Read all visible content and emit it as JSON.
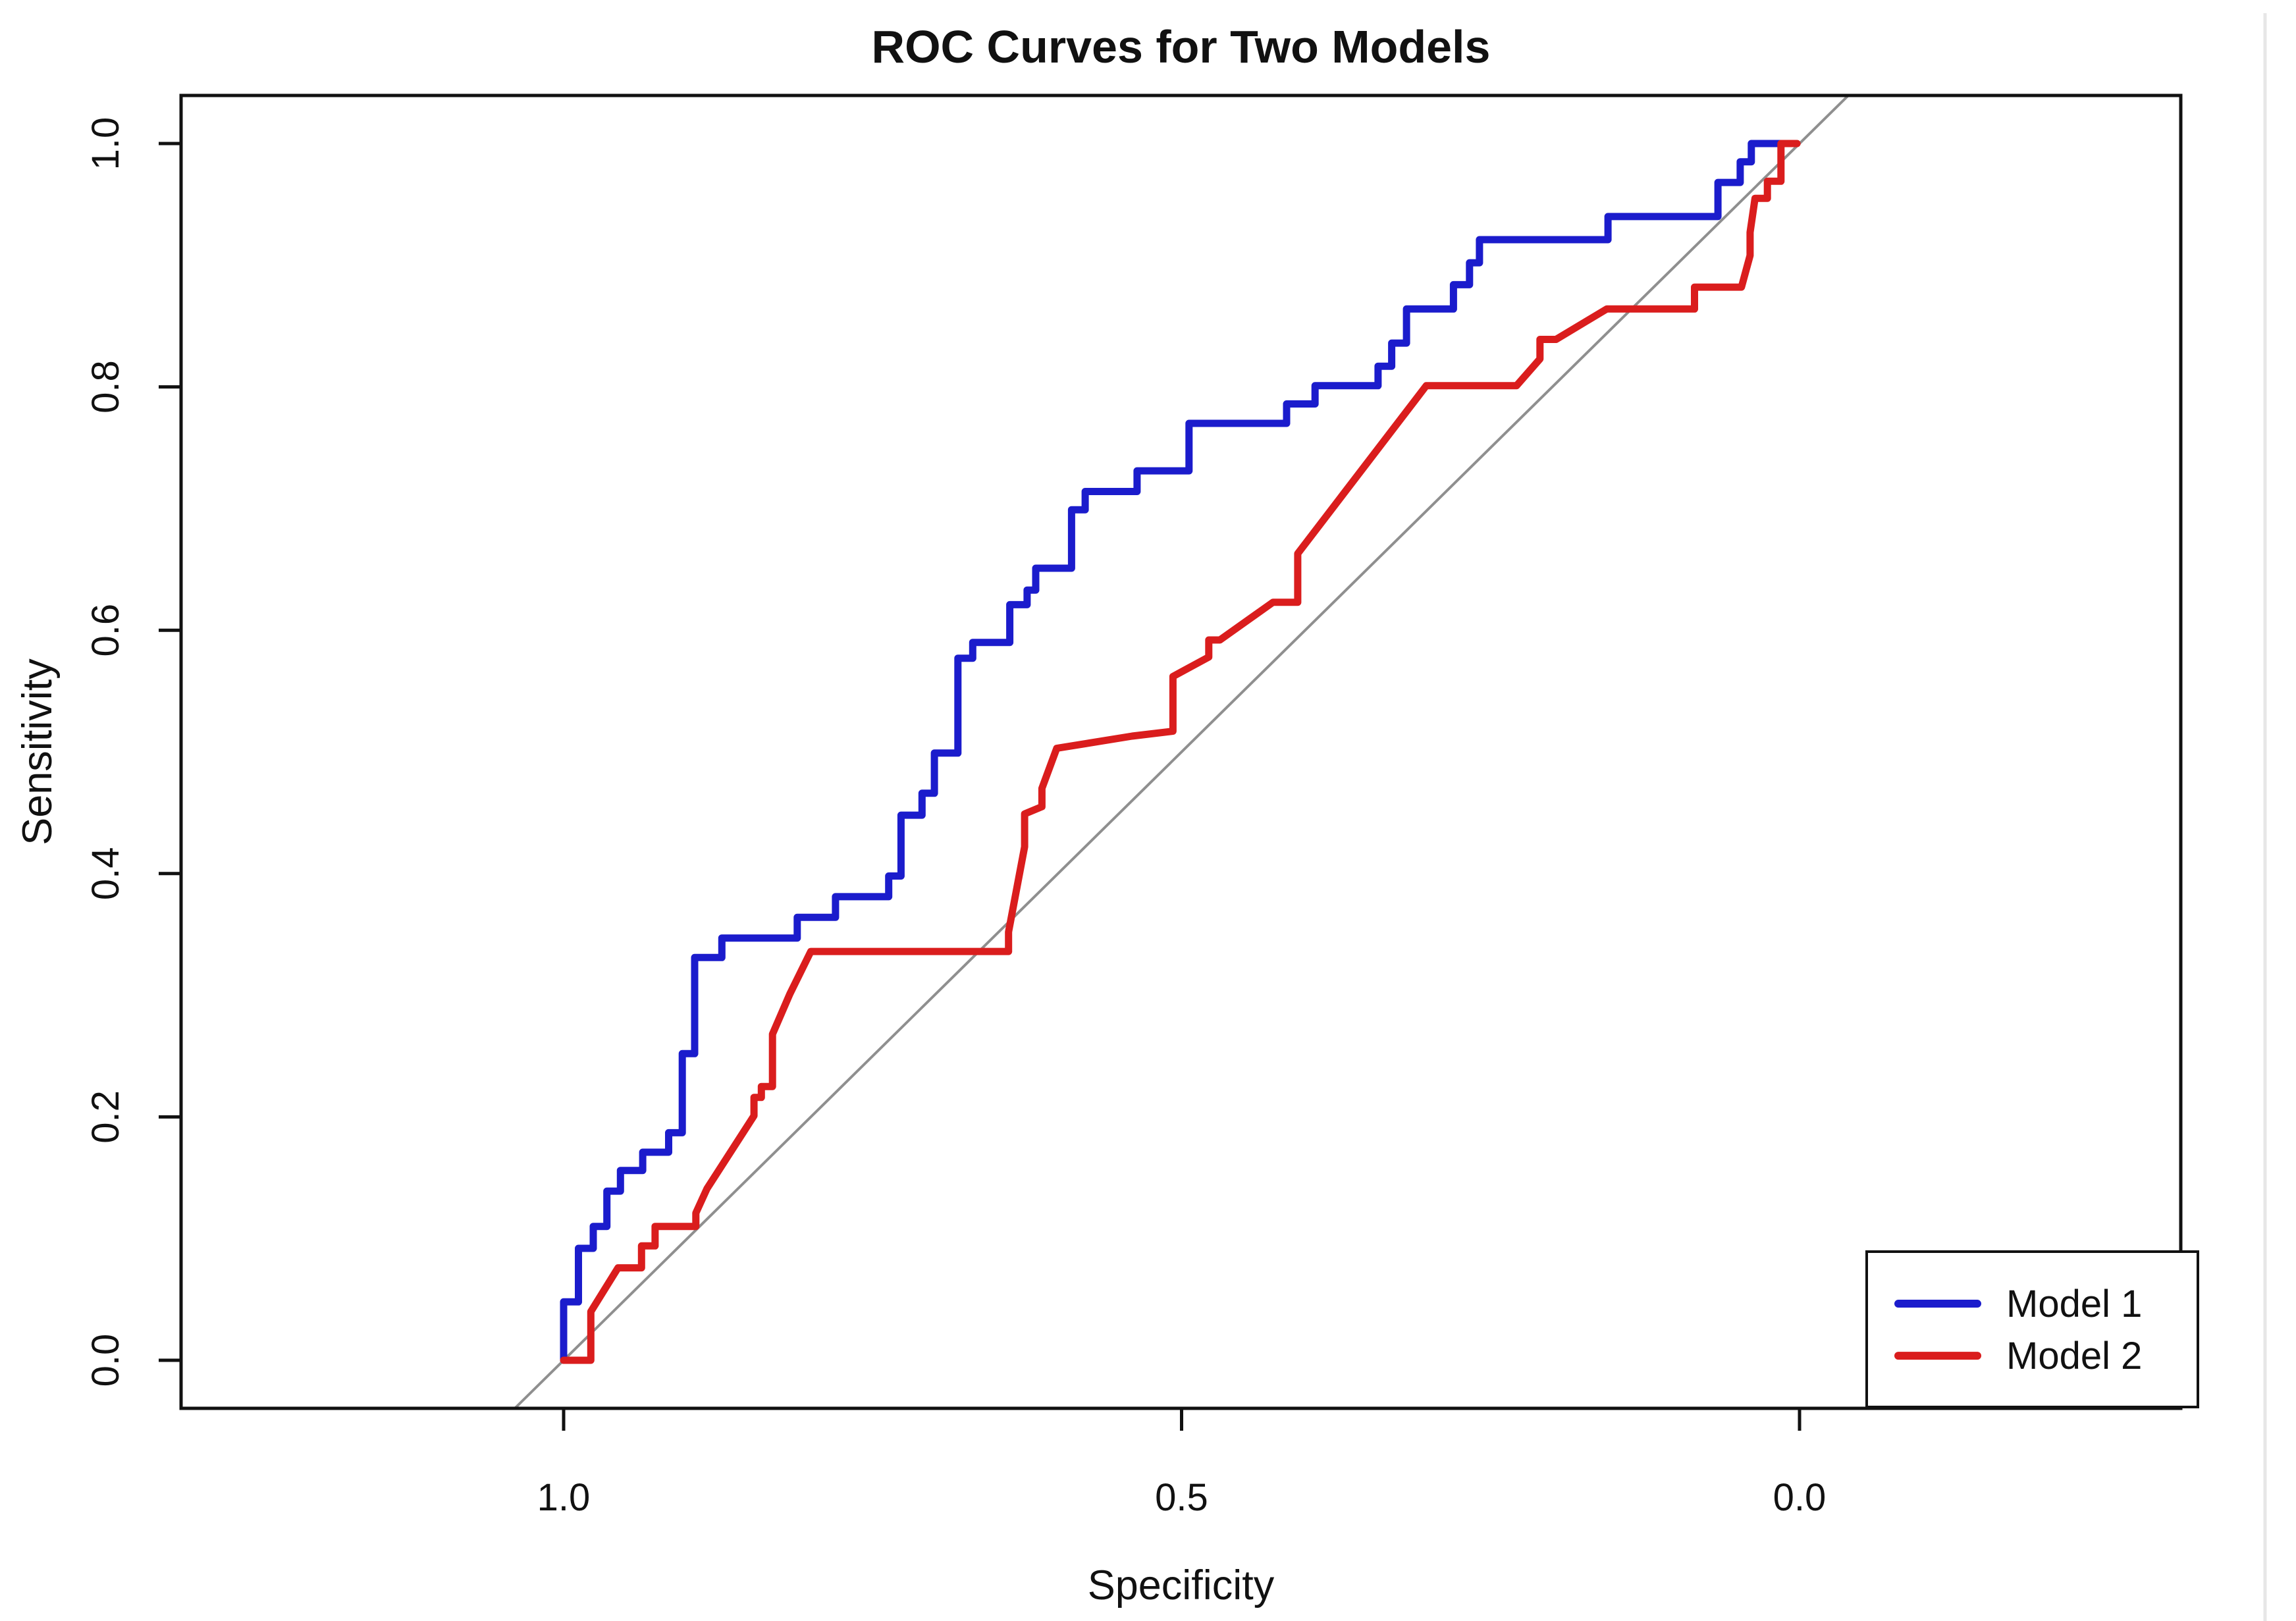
{
  "page": {
    "background": "#ffffff",
    "edge_line_color": "#e7e7e7"
  },
  "chart_data": {
    "type": "line",
    "subtype": "roc-step-curves",
    "title": "ROC Curves for Two Models",
    "xlabel": "Specificity",
    "ylabel": "Sensitivity",
    "x_axis": {
      "reversed": true,
      "range_shown": [
        1.0,
        0.0
      ],
      "ticks": [
        {
          "value": 1.0,
          "label": "1.0"
        },
        {
          "value": 0.5,
          "label": "0.5"
        },
        {
          "value": 0.0,
          "label": "0.0"
        }
      ]
    },
    "y_axis": {
      "range_shown": [
        0.0,
        1.0
      ],
      "ticks": [
        {
          "value": 0.0,
          "label": "0.0"
        },
        {
          "value": 0.2,
          "label": "0.2"
        },
        {
          "value": 0.4,
          "label": "0.4"
        },
        {
          "value": 0.6,
          "label": "0.6"
        },
        {
          "value": 0.8,
          "label": "0.8"
        },
        {
          "value": 1.0,
          "label": "1.0"
        }
      ]
    },
    "grid": false,
    "axis_color": "#111111",
    "reference_line": {
      "description": "chance diagonal, sensitivity = 1 - specificity",
      "from": [
        1,
        0
      ],
      "to": [
        0,
        1
      ],
      "color": "#8f8f8f"
    },
    "legend": {
      "position": "bottom-right",
      "border_color": "#111111",
      "background": "#ffffff",
      "entries": [
        {
          "label": "Model 1",
          "color": "#1b1ccc"
        },
        {
          "label": "Model 2",
          "color": "#da1d1d"
        }
      ]
    },
    "series": [
      {
        "name": "Model 1",
        "color": "#1b1ccc",
        "points": [
          [
            1.0,
            0.0
          ],
          [
            1.0,
            0.048
          ],
          [
            0.988,
            0.048
          ],
          [
            0.988,
            0.092
          ],
          [
            0.976,
            0.092
          ],
          [
            0.976,
            0.11
          ],
          [
            0.965,
            0.11
          ],
          [
            0.965,
            0.139
          ],
          [
            0.954,
            0.139
          ],
          [
            0.954,
            0.156
          ],
          [
            0.936,
            0.156
          ],
          [
            0.936,
            0.171
          ],
          [
            0.915,
            0.171
          ],
          [
            0.915,
            0.187
          ],
          [
            0.904,
            0.187
          ],
          [
            0.904,
            0.252
          ],
          [
            0.894,
            0.252
          ],
          [
            0.894,
            0.331
          ],
          [
            0.872,
            0.331
          ],
          [
            0.872,
            0.347
          ],
          [
            0.811,
            0.347
          ],
          [
            0.811,
            0.364
          ],
          [
            0.78,
            0.364
          ],
          [
            0.78,
            0.381
          ],
          [
            0.737,
            0.381
          ],
          [
            0.737,
            0.398
          ],
          [
            0.727,
            0.398
          ],
          [
            0.727,
            0.448
          ],
          [
            0.71,
            0.448
          ],
          [
            0.71,
            0.466
          ],
          [
            0.7,
            0.466
          ],
          [
            0.7,
            0.499
          ],
          [
            0.681,
            0.499
          ],
          [
            0.681,
            0.577
          ],
          [
            0.669,
            0.577
          ],
          [
            0.669,
            0.59
          ],
          [
            0.639,
            0.59
          ],
          [
            0.639,
            0.621
          ],
          [
            0.625,
            0.621
          ],
          [
            0.625,
            0.633
          ],
          [
            0.618,
            0.633
          ],
          [
            0.618,
            0.651
          ],
          [
            0.589,
            0.651
          ],
          [
            0.589,
            0.699
          ],
          [
            0.578,
            0.699
          ],
          [
            0.578,
            0.714
          ],
          [
            0.536,
            0.714
          ],
          [
            0.536,
            0.731
          ],
          [
            0.494,
            0.731
          ],
          [
            0.494,
            0.77
          ],
          [
            0.415,
            0.77
          ],
          [
            0.415,
            0.786
          ],
          [
            0.392,
            0.786
          ],
          [
            0.392,
            0.801
          ],
          [
            0.341,
            0.801
          ],
          [
            0.341,
            0.817
          ],
          [
            0.33,
            0.817
          ],
          [
            0.33,
            0.836
          ],
          [
            0.318,
            0.836
          ],
          [
            0.318,
            0.864
          ],
          [
            0.28,
            0.864
          ],
          [
            0.28,
            0.884
          ],
          [
            0.267,
            0.884
          ],
          [
            0.267,
            0.902
          ],
          [
            0.259,
            0.902
          ],
          [
            0.259,
            0.921
          ],
          [
            0.155,
            0.921
          ],
          [
            0.155,
            0.94
          ],
          [
            0.066,
            0.94
          ],
          [
            0.066,
            0.968
          ],
          [
            0.048,
            0.968
          ],
          [
            0.048,
            0.985
          ],
          [
            0.039,
            0.985
          ],
          [
            0.039,
            1.0
          ],
          [
            0.005,
            1.0
          ]
        ]
      },
      {
        "name": "Model 2",
        "color": "#da1d1d",
        "points": [
          [
            1.0,
            0.0
          ],
          [
            0.978,
            0.0
          ],
          [
            0.978,
            0.04
          ],
          [
            0.956,
            0.076
          ],
          [
            0.937,
            0.076
          ],
          [
            0.937,
            0.094
          ],
          [
            0.926,
            0.094
          ],
          [
            0.926,
            0.11
          ],
          [
            0.893,
            0.11
          ],
          [
            0.893,
            0.121
          ],
          [
            0.884,
            0.141
          ],
          [
            0.846,
            0.201
          ],
          [
            0.846,
            0.216
          ],
          [
            0.84,
            0.216
          ],
          [
            0.84,
            0.225
          ],
          [
            0.831,
            0.225
          ],
          [
            0.831,
            0.268
          ],
          [
            0.817,
            0.301
          ],
          [
            0.8,
            0.336
          ],
          [
            0.64,
            0.336
          ],
          [
            0.64,
            0.352
          ],
          [
            0.627,
            0.422
          ],
          [
            0.627,
            0.449
          ],
          [
            0.613,
            0.455
          ],
          [
            0.613,
            0.47
          ],
          [
            0.601,
            0.503
          ],
          [
            0.54,
            0.513
          ],
          [
            0.507,
            0.517
          ],
          [
            0.507,
            0.562
          ],
          [
            0.478,
            0.578
          ],
          [
            0.478,
            0.592
          ],
          [
            0.469,
            0.592
          ],
          [
            0.426,
            0.623
          ],
          [
            0.406,
            0.623
          ],
          [
            0.406,
            0.663
          ],
          [
            0.302,
            0.801
          ],
          [
            0.229,
            0.801
          ],
          [
            0.21,
            0.823
          ],
          [
            0.21,
            0.839
          ],
          [
            0.197,
            0.839
          ],
          [
            0.156,
            0.864
          ],
          [
            0.085,
            0.864
          ],
          [
            0.085,
            0.882
          ],
          [
            0.047,
            0.882
          ],
          [
            0.04,
            0.908
          ],
          [
            0.04,
            0.927
          ],
          [
            0.036,
            0.955
          ],
          [
            0.026,
            0.955
          ],
          [
            0.026,
            0.969
          ],
          [
            0.015,
            0.969
          ],
          [
            0.015,
            1.0
          ],
          [
            0.002,
            1.0
          ]
        ]
      }
    ]
  }
}
